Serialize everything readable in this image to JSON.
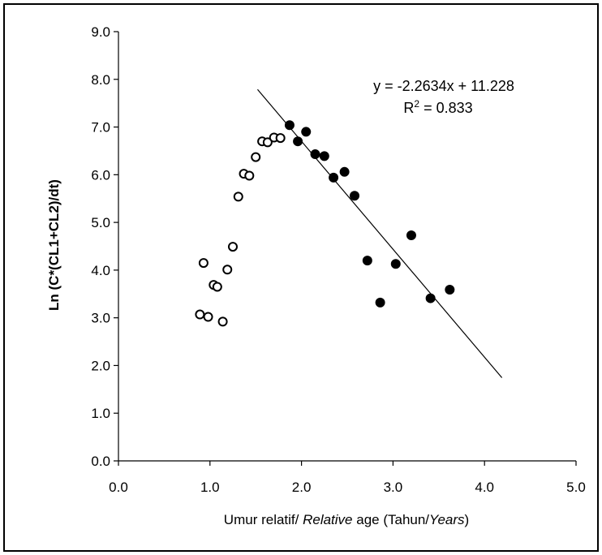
{
  "chart_data": {
    "type": "scatter",
    "xlabel_parts": [
      {
        "text": "Umur relatif/ ",
        "italic": false
      },
      {
        "text": "Relative",
        "italic": true
      },
      {
        "text": " age",
        "italic": false
      },
      {
        "text": " (Tahun/",
        "italic": false
      },
      {
        "text": "Years",
        "italic": true
      },
      {
        "text": ")",
        "italic": false
      }
    ],
    "ylabel": "Ln (C*(CL1+CL2)/dt)",
    "xlim": [
      0,
      5
    ],
    "ylim": [
      0,
      9
    ],
    "x_ticks": [
      "0.0",
      "1.0",
      "2.0",
      "3.0",
      "4.0",
      "5.0"
    ],
    "y_ticks": [
      "0.0",
      "1.0",
      "2.0",
      "3.0",
      "4.0",
      "5.0",
      "6.0",
      "7.0",
      "8.0",
      "9.0"
    ],
    "grid": false,
    "series": [
      {
        "marker": "open-circle",
        "points": [
          [
            0.89,
            3.07
          ],
          [
            0.93,
            4.15
          ],
          [
            0.98,
            3.02
          ],
          [
            1.04,
            3.69
          ],
          [
            1.08,
            3.65
          ],
          [
            1.14,
            2.92
          ],
          [
            1.19,
            4.01
          ],
          [
            1.25,
            4.49
          ],
          [
            1.31,
            5.54
          ],
          [
            1.37,
            6.02
          ],
          [
            1.43,
            5.98
          ],
          [
            1.5,
            6.37
          ],
          [
            1.57,
            6.7
          ],
          [
            1.63,
            6.68
          ],
          [
            1.7,
            6.78
          ],
          [
            1.77,
            6.77
          ]
        ]
      },
      {
        "marker": "filled-circle",
        "points": [
          [
            1.87,
            7.04
          ],
          [
            1.96,
            6.7
          ],
          [
            2.05,
            6.9
          ],
          [
            2.15,
            6.43
          ],
          [
            2.25,
            6.39
          ],
          [
            2.35,
            5.94
          ],
          [
            2.47,
            6.06
          ],
          [
            2.58,
            5.56
          ],
          [
            2.72,
            4.2
          ],
          [
            2.86,
            3.32
          ],
          [
            3.03,
            4.13
          ],
          [
            3.2,
            4.73
          ],
          [
            3.41,
            3.41
          ],
          [
            3.62,
            3.59
          ]
        ]
      }
    ],
    "trendline": {
      "slope": -2.2634,
      "intercept": 11.228,
      "x_range": [
        1.52,
        4.19
      ],
      "equation": "y = -2.2634x + 11.228",
      "r2_prefix": "R",
      "r2_sup": "2",
      "r2_value": " = 0.833"
    }
  }
}
